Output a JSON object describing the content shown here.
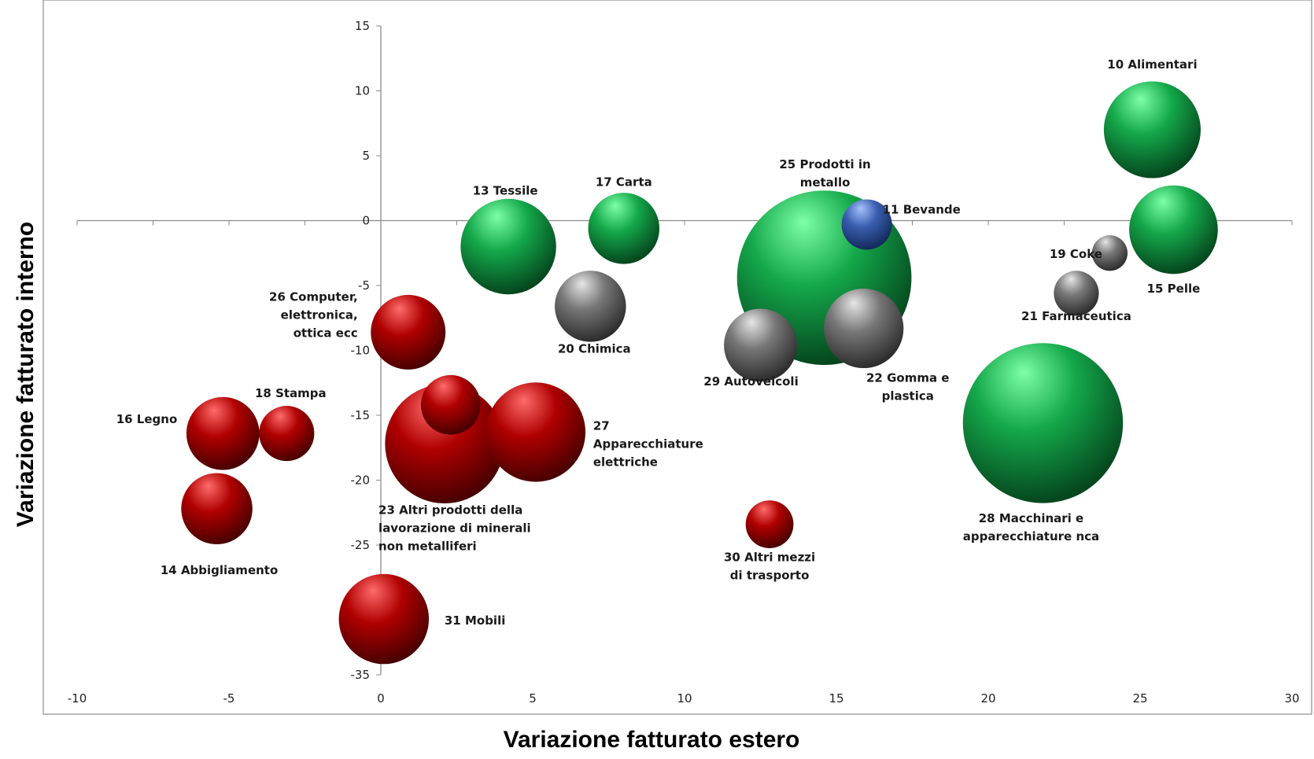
{
  "chart_data": {
    "type": "bubble",
    "xlabel": "Variazione fatturato estero",
    "ylabel": "Variazione fatturato interno",
    "xlim": [
      -10,
      30
    ],
    "ylim": [
      -35,
      15
    ],
    "xticks": [
      -10,
      -5,
      0,
      5,
      10,
      15,
      20,
      25,
      30
    ],
    "yticks": [
      15,
      10,
      5,
      0,
      -5,
      -10,
      -15,
      -20,
      -25,
      -30,
      -35
    ],
    "grid": false,
    "colors": {
      "red": "#c40000",
      "green": "#14a84a",
      "gray": "#7a7a7a",
      "blue": "#3a5fb0"
    },
    "bubbles": [
      {
        "label": "11 Bevande",
        "x": 16,
        "y": -0.3,
        "size": 1.0,
        "color": "blue"
      },
      {
        "label": "10 Alimentari",
        "x": 25.4,
        "y": 7,
        "size": 3.7,
        "color": "green"
      },
      {
        "label": "15 Pelle",
        "x": 26.1,
        "y": -0.7,
        "size": 3.1,
        "color": "green"
      },
      {
        "label": "19 Coke",
        "x": 24,
        "y": -2.5,
        "size": 0.5,
        "color": "gray"
      },
      {
        "label": "21 Farmaceutica",
        "x": 22.9,
        "y": -5.6,
        "size": 0.8,
        "color": "gray"
      },
      {
        "label": "28 Macchinari e apparecchiature nca",
        "x": 21.8,
        "y": -15.6,
        "size": 10.1,
        "color": "green"
      },
      {
        "label": "22 Gomma e plastica",
        "x": 15.9,
        "y": -8.3,
        "size": 2.5,
        "color": "gray"
      },
      {
        "label": "25 Prodotti in metallo",
        "x": 14.6,
        "y": -4.4,
        "size": 12.0,
        "color": "green"
      },
      {
        "label": "29 Autoveicoli",
        "x": 12.5,
        "y": -9.6,
        "size": 2.1,
        "color": "gray"
      },
      {
        "label": "30 Altri mezzi di trasporto",
        "x": 12.8,
        "y": -23.4,
        "size": 0.9,
        "color": "red"
      },
      {
        "label": "17 Carta",
        "x": 8,
        "y": -0.6,
        "size": 2.0,
        "color": "green"
      },
      {
        "label": "13 Tessile",
        "x": 4.2,
        "y": -2,
        "size": 3.6,
        "color": "green"
      },
      {
        "label": "20 Chimica",
        "x": 6.9,
        "y": -6.6,
        "size": 2.0,
        "color": "gray"
      },
      {
        "label": "27 Apparecchiature elettriche",
        "x": 5.1,
        "y": -16.3,
        "size": 3.9,
        "color": "red"
      },
      {
        "label": "23 Altri prodotti della lavorazione di minerali non metalliferi",
        "x": 2.1,
        "y": -17.2,
        "size": 5.6,
        "color": "red"
      },
      {
        "label": "",
        "x": 2.3,
        "y": -14.2,
        "size": 1.4,
        "color": "red"
      },
      {
        "label": "26 Computer, elettronica, ottica ecc",
        "x": 0.9,
        "y": -8.6,
        "size": 2.2,
        "color": "red"
      },
      {
        "label": "31 Mobili",
        "x": 0.1,
        "y": -30.7,
        "size": 3.2,
        "color": "red"
      },
      {
        "label": "16 Legno",
        "x": -5.2,
        "y": -16.4,
        "size": 2.1,
        "color": "red"
      },
      {
        "label": "18 Stampa",
        "x": -3.1,
        "y": -16.4,
        "size": 1.2,
        "color": "red"
      },
      {
        "label": "14 Abbigliamento",
        "x": -5.4,
        "y": -22.2,
        "size": 2.0,
        "color": "red"
      }
    ]
  }
}
